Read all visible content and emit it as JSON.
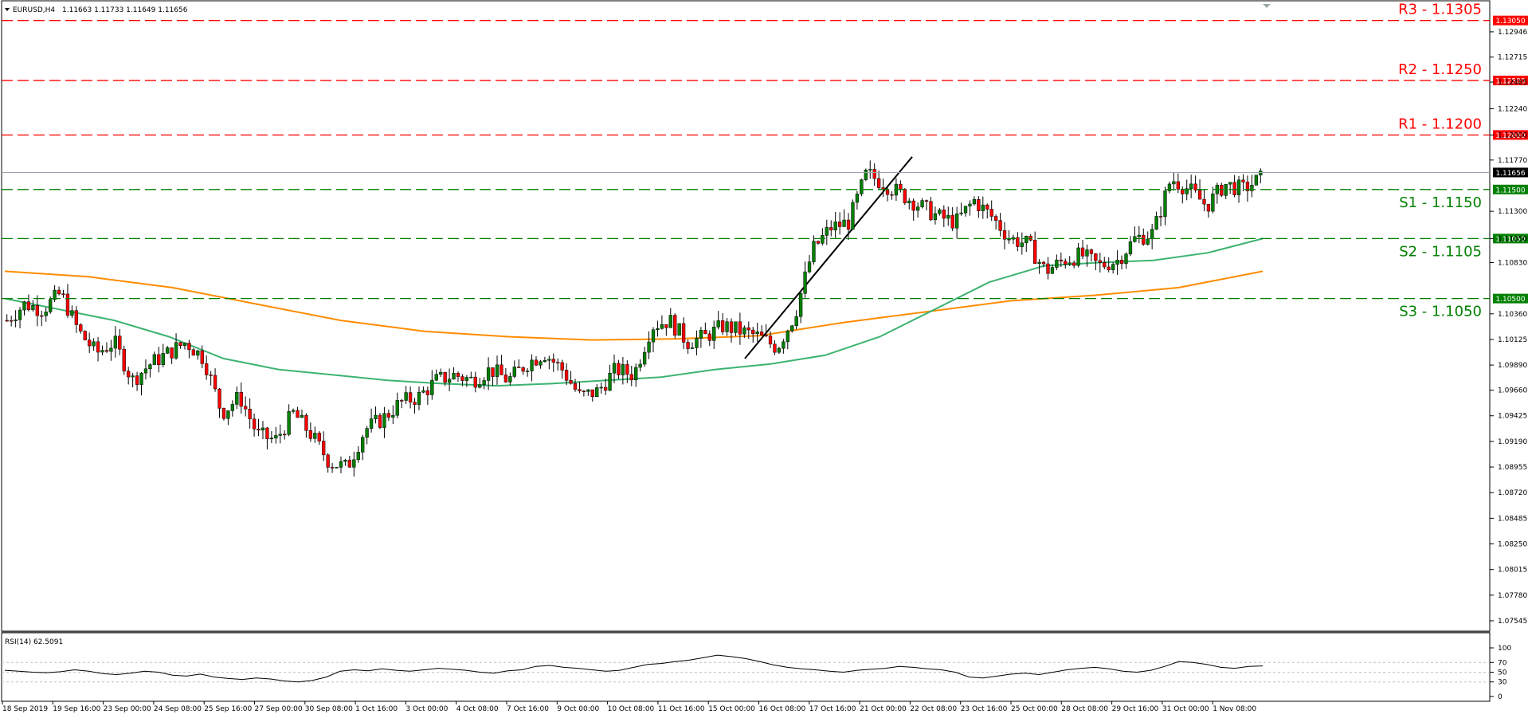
{
  "window": {
    "symbol_label": "EURUSD,H4",
    "ohlc_text": "1.11663 1.11733 1.11649 1.11656",
    "menu_arrow": "triangle-down-icon"
  },
  "colors": {
    "resistance": "#ff0000",
    "support": "#008000",
    "bull_candle": "#008000",
    "bear_candle": "#ff0000",
    "ma_fast": "#3cb371",
    "ma_slow": "#ff8c00",
    "current_price": "#000000",
    "rsi_line": "#000000"
  },
  "chart_data": [
    {
      "type": "candlestick",
      "title": "EURUSD,H4",
      "ylim": [
        1.0745,
        1.1315
      ],
      "y_ticks": [
        "1.12946",
        "1.12715",
        "1.12485",
        "1.12240",
        "1.12000",
        "1.11770",
        "1.11300",
        "1.11050",
        "1.10830",
        "1.10360",
        "1.10125",
        "1.09890",
        "1.09660",
        "1.09425",
        "1.09190",
        "1.08955",
        "1.08720",
        "1.08485",
        "1.08250",
        "1.08015",
        "1.07780",
        "1.07545"
      ],
      "x_labels": [
        "18 Sep 2019",
        "19 Sep 16:00",
        "23 Sep 00:00",
        "24 Sep 08:00",
        "25 Sep 16:00",
        "27 Sep 00:00",
        "30 Sep 08:00",
        "1 Oct 16:00",
        "3 Oct 00:00",
        "4 Oct 08:00",
        "7 Oct 16:00",
        "9 Oct 00:00",
        "10 Oct 08:00",
        "11 Oct 16:00",
        "15 Oct 00:00",
        "16 Oct 08:00",
        "17 Oct 16:00",
        "21 Oct 00:00",
        "22 Oct 08:00",
        "23 Oct 16:00",
        "25 Oct 00:00",
        "28 Oct 08:00",
        "29 Oct 16:00",
        "31 Oct 00:00",
        "1 Nov 08:00"
      ],
      "current_price": "1.11656",
      "levels": [
        {
          "name": "R3 - 1.1305",
          "value": 1.1305,
          "tag": "1.13050",
          "kind": "resistance"
        },
        {
          "name": "R2 - 1.1250",
          "value": 1.125,
          "tag": "1.12500",
          "kind": "resistance"
        },
        {
          "name": "R1 - 1.1200",
          "value": 1.12,
          "tag": "1.12000",
          "kind": "resistance"
        },
        {
          "name": "S1 - 1.1150",
          "value": 1.115,
          "tag": "1.11500",
          "kind": "support"
        },
        {
          "name": "S2 - 1.1105",
          "value": 1.1105,
          "tag": "1.11050",
          "kind": "support"
        },
        {
          "name": "S3 - 1.1050",
          "value": 1.105,
          "tag": "1.10500",
          "kind": "support"
        }
      ],
      "close_path": [
        1.103,
        1.1045,
        1.104,
        1.1055,
        1.102,
        1.1,
        1.101,
        1.0975,
        1.099,
        1.1,
        1.101,
        1.0995,
        1.0945,
        1.096,
        1.0925,
        1.092,
        1.0945,
        1.0925,
        1.09,
        1.0895,
        1.093,
        1.094,
        1.0955,
        1.096,
        1.0975,
        1.098,
        1.0975,
        1.0985,
        1.0975,
        1.099,
        1.1,
        1.0985,
        1.096,
        1.0965,
        1.0985,
        1.098,
        1.1025,
        1.103,
        1.101,
        1.1015,
        1.1025,
        1.102,
        1.1015,
        1.1005,
        1.1035,
        1.1095,
        1.1115,
        1.112,
        1.1165,
        1.1155,
        1.1145,
        1.1135,
        1.1125,
        1.112,
        1.114,
        1.1125,
        1.1105,
        1.11,
        1.1075,
        1.1085,
        1.109,
        1.108,
        1.1085,
        1.1105,
        1.111,
        1.116,
        1.115,
        1.1135,
        1.1155,
        1.115,
        1.116
      ],
      "ma_fast_path": [
        1.105,
        1.104,
        1.103,
        1.1015,
        1.0995,
        1.0985,
        1.098,
        1.0975,
        1.0972,
        1.097,
        1.0972,
        1.0975,
        1.0978,
        1.0985,
        1.099,
        1.0998,
        1.1015,
        1.104,
        1.1065,
        1.108,
        1.1083,
        1.1085,
        1.1092,
        1.1105
      ],
      "ma_slow_path": [
        1.1075,
        1.107,
        1.106,
        1.1045,
        1.103,
        1.102,
        1.1015,
        1.1012,
        1.1013,
        1.1016,
        1.1028,
        1.1038,
        1.1048,
        1.1053,
        1.106,
        1.1075
      ],
      "annotations": [
        "trendline-up"
      ]
    },
    {
      "type": "line",
      "title": "RSI(14) 62.5091",
      "ylim": [
        0,
        100
      ],
      "y_ticks": [
        "100",
        "70",
        "50",
        "30",
        "0"
      ],
      "levels": [
        70,
        50,
        30
      ],
      "values": [
        54,
        52,
        50,
        49,
        51,
        55,
        52,
        47,
        45,
        48,
        52,
        50,
        44,
        42,
        46,
        40,
        37,
        35,
        38,
        36,
        32,
        30,
        33,
        40,
        52,
        55,
        53,
        57,
        54,
        52,
        55,
        58,
        56,
        54,
        50,
        48,
        53,
        55,
        62,
        64,
        60,
        58,
        55,
        52,
        54,
        60,
        66,
        68,
        72,
        75,
        80,
        85,
        82,
        78,
        72,
        65,
        60,
        57,
        55,
        52,
        50,
        54,
        56,
        58,
        62,
        60,
        57,
        55,
        50,
        40,
        38,
        42,
        46,
        48,
        45,
        50,
        55,
        58,
        60,
        57,
        52,
        50,
        54,
        62,
        72,
        70,
        66,
        60,
        58,
        62,
        63
      ]
    }
  ]
}
